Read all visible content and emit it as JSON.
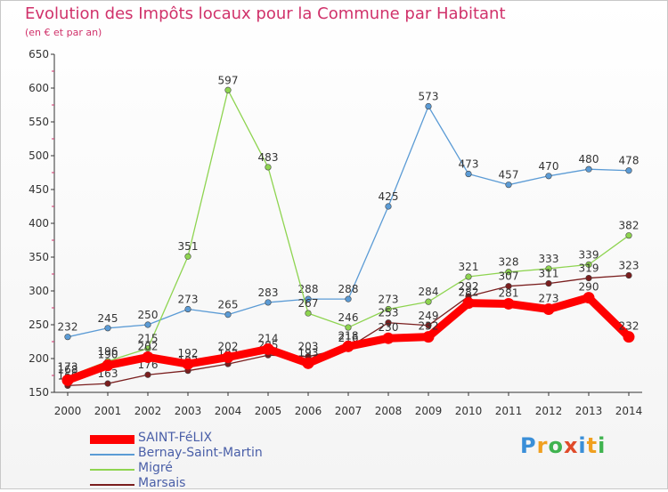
{
  "title": "Evolution des Impôts locaux pour la Commune par Habitant",
  "subtitle": "(en € et par an)",
  "logo": {
    "text": "Proxiti",
    "colors": [
      "#3a8fd8",
      "#f0a020",
      "#3fb34f",
      "#e04b2a",
      "#3a8fd8",
      "#f0a020",
      "#3fb34f"
    ]
  },
  "chart_data": {
    "type": "line",
    "title": "Evolution des Impôts locaux pour la Commune par Habitant",
    "ylabel": "(en € et par an)",
    "xlabel": "",
    "x": [
      "2000",
      "2001",
      "2002",
      "2003",
      "2004",
      "2005",
      "2006",
      "2007",
      "2008",
      "2009",
      "2010",
      "2011",
      "2012",
      "2013",
      "2014"
    ],
    "ylim": [
      150,
      650
    ],
    "yticks": [
      150,
      200,
      250,
      300,
      350,
      400,
      450,
      500,
      550,
      600,
      650
    ],
    "grid": false,
    "legend_position": "bottom-left",
    "series": [
      {
        "name": "SAINT-FéLIX",
        "color": "#ff0000",
        "values": [
          168,
          190,
          202,
          192,
          202,
          214,
          193,
          218,
          230,
          232,
          282,
          281,
          273,
          290,
          232
        ],
        "labels": [
          "168",
          "190",
          "202",
          "192",
          "202",
          "214",
          "193",
          "218",
          "230",
          "232",
          "282",
          "281",
          "273",
          "290",
          "232"
        ]
      },
      {
        "name": "Bernay-Saint-Martin",
        "color": "#5b9bd5",
        "values": [
          232,
          245,
          250,
          273,
          265,
          283,
          288,
          288,
          425,
          573,
          473,
          457,
          470,
          480,
          478
        ],
        "labels": [
          "232",
          "245",
          "250",
          "273",
          "265",
          "283",
          "288",
          "288",
          "425",
          "573",
          "473",
          "457",
          "470",
          "480",
          "478"
        ]
      },
      {
        "name": "Migré",
        "color": "#8ed450",
        "values": [
          173,
          196,
          215,
          351,
          597,
          483,
          267,
          246,
          273,
          284,
          321,
          328,
          333,
          339,
          382
        ],
        "labels": [
          "173",
          "196",
          "215",
          "351",
          "597",
          "483",
          "267",
          "246",
          "273",
          "284",
          "321",
          "328",
          "333",
          "339",
          "382"
        ]
      },
      {
        "name": "Marsais",
        "color": "#7a1e1e",
        "values": [
          160,
          163,
          176,
          182,
          192,
          205,
          203,
          216,
          253,
          249,
          292,
          307,
          311,
          319,
          323
        ],
        "labels": [
          "160",
          "163",
          "176",
          "182",
          "192",
          "205",
          "203",
          "216",
          "253",
          "249",
          "292",
          "307",
          "311",
          "319",
          "323"
        ]
      }
    ]
  }
}
